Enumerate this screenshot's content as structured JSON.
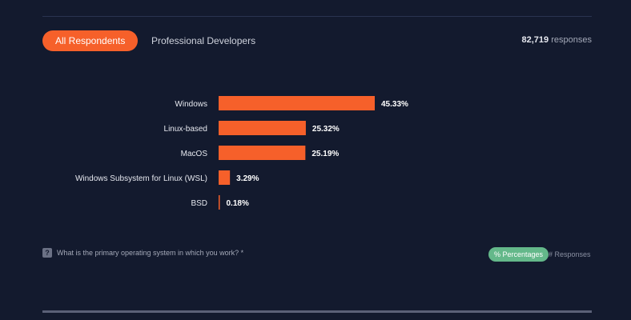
{
  "tabs": {
    "active_label": "All Respondents",
    "inactive_label": "Professional Developers"
  },
  "responses": {
    "count": "82,719",
    "label": "responses"
  },
  "question": {
    "icon": "question-mark-icon",
    "icon_glyph": "?",
    "text": "What is the primary operating system in which you work? *"
  },
  "toggles": {
    "percentages_label": "% Percentages",
    "responses_label": "# Responses"
  },
  "colors": {
    "bar": "#f6602a",
    "active_tab": "#f6602a",
    "percentages_toggle": "#64b88a",
    "background": "#131a2e"
  },
  "chart_data": {
    "type": "bar",
    "orientation": "horizontal",
    "categories": [
      "Windows",
      "Linux-based",
      "MacOS",
      "Windows Subsystem for Linux (WSL)",
      "BSD"
    ],
    "values": [
      45.33,
      25.32,
      25.19,
      3.29,
      0.18
    ],
    "value_labels": [
      "45.33%",
      "25.32%",
      "25.19%",
      "3.29%",
      "0.18%"
    ],
    "xlim": [
      0,
      45.33
    ]
  }
}
